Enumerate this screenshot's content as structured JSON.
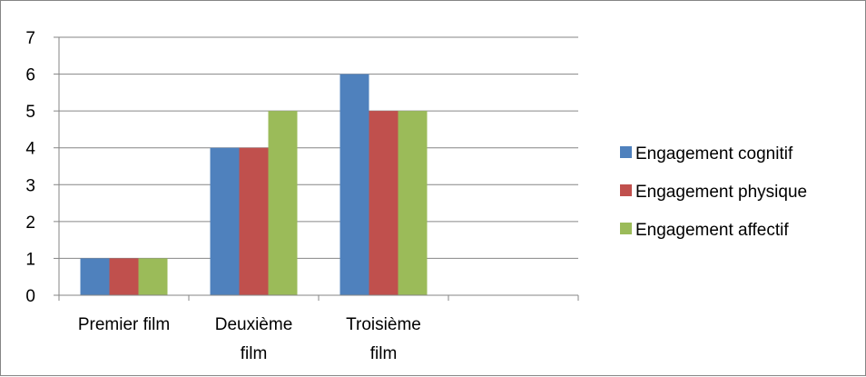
{
  "chart_data": {
    "type": "bar",
    "categories": [
      [
        "Premier film"
      ],
      [
        "Deuxième",
        "film"
      ],
      [
        "Troisième",
        "film"
      ],
      [
        ""
      ]
    ],
    "series": [
      {
        "name": "Engagement cognitif",
        "values": [
          1,
          4,
          6,
          null
        ],
        "color": "#4F81BD"
      },
      {
        "name": "Engagement physique",
        "values": [
          1,
          4,
          5,
          null
        ],
        "color": "#C0504D"
      },
      {
        "name": "Engagement affectif",
        "values": [
          1,
          5,
          5,
          null
        ],
        "color": "#9BBB59"
      }
    ],
    "ylim": [
      0,
      7
    ],
    "yticks": [
      "0",
      "1",
      "2",
      "3",
      "4",
      "5",
      "6",
      "7"
    ],
    "grid": true,
    "legend_position": "right",
    "gridline_color": "#868686",
    "axis_color": "#868686"
  }
}
